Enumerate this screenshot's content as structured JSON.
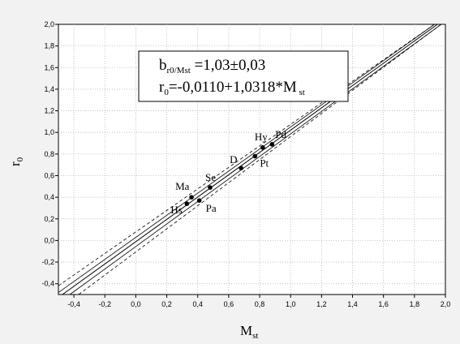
{
  "chart_data": {
    "type": "scatter",
    "xlabel": "M",
    "xlabel_sub": "st",
    "ylabel": "r",
    "ylabel_sub": "0",
    "xlim": [
      -0.5,
      2.0
    ],
    "ylim": [
      -0.5,
      2.0
    ],
    "xticks": [
      -0.4,
      -0.2,
      0.0,
      0.2,
      0.4,
      0.6,
      0.8,
      1.0,
      1.2,
      1.4,
      1.6,
      1.8,
      2.0
    ],
    "yticks": [
      -0.4,
      -0.2,
      0.0,
      0.2,
      0.4,
      0.6,
      0.8,
      1.0,
      1.2,
      1.4,
      1.6,
      1.8,
      2.0
    ],
    "xtick_labels": [
      "-0,4",
      "-0,2",
      "0,0",
      "0,2",
      "0,4",
      "0,6",
      "0,8",
      "1,0",
      "1,2",
      "1,4",
      "1,6",
      "1,8",
      "2,0"
    ],
    "ytick_labels": [
      "-0,4",
      "-0,2",
      "0,0",
      "0,2",
      "0,4",
      "0,6",
      "0,8",
      "1,0",
      "1,2",
      "1,4",
      "1,6",
      "1,8",
      "2,0"
    ],
    "grid": true,
    "points": [
      {
        "label": "Hs",
        "x": 0.33,
        "y": 0.34
      },
      {
        "label": "Ma",
        "x": 0.36,
        "y": 0.4
      },
      {
        "label": "Pa",
        "x": 0.41,
        "y": 0.37
      },
      {
        "label": "Se",
        "x": 0.48,
        "y": 0.49
      },
      {
        "label": "D",
        "x": 0.68,
        "y": 0.67
      },
      {
        "label": "Pt",
        "x": 0.77,
        "y": 0.78
      },
      {
        "label": "Hy",
        "x": 0.82,
        "y": 0.86
      },
      {
        "label": "Pd",
        "x": 0.88,
        "y": 0.89
      }
    ],
    "regression": {
      "intercept": -0.011,
      "slope": 1.0318
    },
    "annotation": {
      "line1_main": "b",
      "line1_sub": "r0/Mst",
      "line1_rest": " =1,03±0,03",
      "line2_main": "r",
      "line2_sub": "0",
      "line2_rest": "=-0,0110+1,0318*M",
      "line2_sub2": " st"
    }
  }
}
